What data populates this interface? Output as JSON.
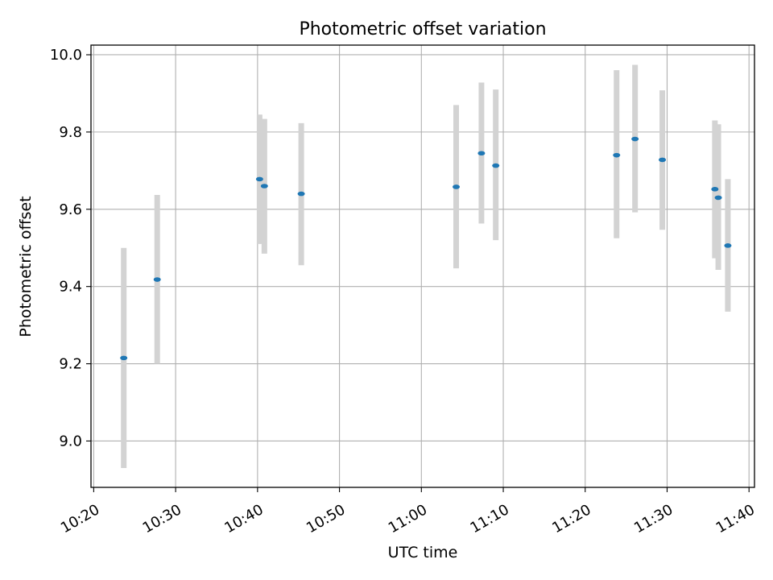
{
  "chart_data": {
    "type": "scatter",
    "title": "Photometric offset variation",
    "xlabel": "UTC time",
    "ylabel": "Photometric offset",
    "grid": true,
    "xlim": [
      "10:19:40",
      "11:40:40"
    ],
    "ylim": [
      8.88,
      10.025
    ],
    "x_ticks": [
      "10:20",
      "10:30",
      "10:40",
      "10:50",
      "11:00",
      "11:10",
      "11:20",
      "11:30",
      "11:40"
    ],
    "y_ticks": [
      "9.0",
      "9.2",
      "9.4",
      "9.6",
      "9.8",
      "10.0"
    ],
    "errorbar_color": "#d3d3d3",
    "marker_color": "#1f77b4",
    "points": [
      {
        "time": "10:23:40",
        "y": 9.215,
        "ylow": 8.93,
        "yhigh": 9.5
      },
      {
        "time": "10:27:45",
        "y": 9.418,
        "ylow": 9.2,
        "yhigh": 9.637
      },
      {
        "time": "10:40:15",
        "y": 9.678,
        "ylow": 9.51,
        "yhigh": 9.845
      },
      {
        "time": "10:40:50",
        "y": 9.66,
        "ylow": 9.485,
        "yhigh": 9.834
      },
      {
        "time": "10:45:20",
        "y": 9.64,
        "ylow": 9.455,
        "yhigh": 9.823
      },
      {
        "time": "11:04:15",
        "y": 9.658,
        "ylow": 9.447,
        "yhigh": 9.87
      },
      {
        "time": "11:07:20",
        "y": 9.745,
        "ylow": 9.563,
        "yhigh": 9.928
      },
      {
        "time": "11:09:05",
        "y": 9.713,
        "ylow": 9.52,
        "yhigh": 9.91
      },
      {
        "time": "11:23:50",
        "y": 9.74,
        "ylow": 9.525,
        "yhigh": 9.96
      },
      {
        "time": "11:26:05",
        "y": 9.782,
        "ylow": 9.592,
        "yhigh": 9.974
      },
      {
        "time": "11:29:25",
        "y": 9.728,
        "ylow": 9.547,
        "yhigh": 9.908
      },
      {
        "time": "11:35:50",
        "y": 9.652,
        "ylow": 9.473,
        "yhigh": 9.83
      },
      {
        "time": "11:36:15",
        "y": 9.63,
        "ylow": 9.443,
        "yhigh": 9.82
      },
      {
        "time": "11:37:25",
        "y": 9.506,
        "ylow": 9.335,
        "yhigh": 9.678
      }
    ]
  }
}
